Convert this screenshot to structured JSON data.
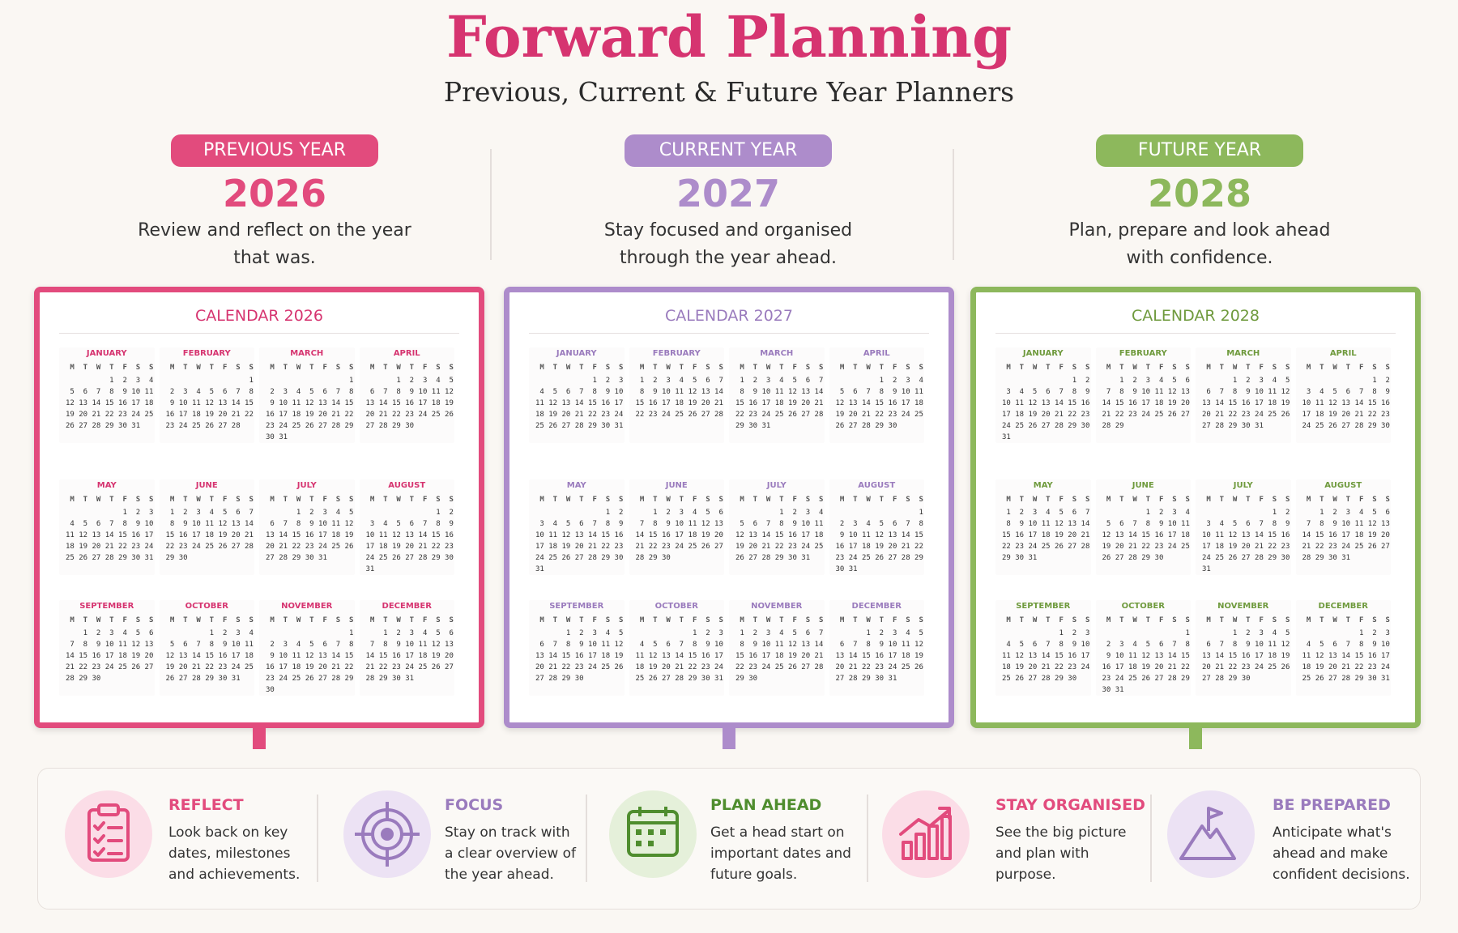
{
  "header": {
    "title": "Forward Planning",
    "subtitle": "Previous, Current & Future Year Planners"
  },
  "weekday_header": " M  T  W  T  F  S  S",
  "month_names": [
    "JANUARY",
    "FEBRUARY",
    "MARCH",
    "APRIL",
    "MAY",
    "JUNE",
    "JULY",
    "AUGUST",
    "SEPTEMBER",
    "OCTOBER",
    "NOVEMBER",
    "DECEMBER"
  ],
  "columns": [
    {
      "badge": "PREVIOUS YEAR",
      "year": "2026",
      "description": [
        "Review and reflect on the year",
        "that was."
      ],
      "calendar_title": "CALENDAR 2026",
      "months": [
        [
          "          1  2  3  4",
          " 5  6  7  8  9 10 11",
          "12 13 14 15 16 17 18",
          "19 20 21 22 23 24 25",
          "26 27 28 29 30 31"
        ],
        [
          "                   1",
          " 2  3  4  5  6  7  8",
          " 9 10 11 12 13 14 15",
          "16 17 18 19 20 21 22",
          "23 24 25 26 27 28"
        ],
        [
          "                   1",
          " 2  3  4  5  6  7  8",
          " 9 10 11 12 13 14 15",
          "16 17 18 19 20 21 22",
          "23 24 25 26 27 28 29",
          "30 31"
        ],
        [
          "       1  2  3  4  5",
          " 6  7  8  9 10 11 12",
          "13 14 15 16 17 18 19",
          "20 21 22 23 24 25 26",
          "27 28 29 30"
        ],
        [
          "             1  2  3",
          " 4  5  6  7  8  9 10",
          "11 12 13 14 15 16 17",
          "18 19 20 21 22 23 24",
          "25 26 27 28 29 30 31"
        ],
        [
          " 1  2  3  4  5  6  7",
          " 8  9 10 11 12 13 14",
          "15 16 17 18 19 20 21",
          "22 23 24 25 26 27 28",
          "29 30"
        ],
        [
          "       1  2  3  4  5",
          " 6  7  8  9 10 11 12",
          "13 14 15 16 17 18 19",
          "20 21 22 23 24 25 26",
          "27 28 29 30 31"
        ],
        [
          "                1  2",
          " 3  4  5  6  7  8  9",
          "10 11 12 13 14 15 16",
          "17 18 19 20 21 22 23",
          "24 25 26 27 28 29 30",
          "31"
        ],
        [
          "    1  2  3  4  5  6",
          " 7  8  9 10 11 12 13",
          "14 15 16 17 18 19 20",
          "21 22 23 24 25 26 27",
          "28 29 30"
        ],
        [
          "          1  2  3  4",
          " 5  6  7  8  9 10 11",
          "12 13 14 15 16 17 18",
          "19 20 21 22 23 24 25",
          "26 27 28 29 30 31"
        ],
        [
          "                   1",
          " 2  3  4  5  6  7  8",
          " 9 10 11 12 13 14 15",
          "16 17 18 19 20 21 22",
          "23 24 25 26 27 28 29",
          "30"
        ],
        [
          "    1  2  3  4  5  6",
          " 7  8  9 10 11 12 13",
          "14 15 16 17 18 19 20",
          "21 22 23 24 25 26 27",
          "28 29 30 31"
        ]
      ]
    },
    {
      "badge": "CURRENT YEAR",
      "year": "2027",
      "description": [
        "Stay focused and organised",
        "through the year ahead."
      ],
      "calendar_title": "CALENDAR 2027",
      "months": [
        [
          "             1  2  3",
          " 4  5  6  7  8  9 10",
          "11 12 13 14 15 16 17",
          "18 19 20 21 22 23 24",
          "25 26 27 28 29 30 31"
        ],
        [
          " 1  2  3  4  5  6  7",
          " 8  9 10 11 12 13 14",
          "15 16 17 18 19 20 21",
          "22 23 24 25 26 27 28"
        ],
        [
          " 1  2  3  4  5  6  7",
          " 8  9 10 11 12 13 14",
          "15 16 17 18 19 20 21",
          "22 23 24 25 26 27 28",
          "29 30 31"
        ],
        [
          "          1  2  3  4",
          " 5  6  7  8  9 10 11",
          "12 13 14 15 16 17 18",
          "19 20 21 22 23 24 25",
          "26 27 28 29 30"
        ],
        [
          "                1  2",
          " 3  4  5  6  7  8  9",
          "10 11 12 13 14 15 16",
          "17 18 19 20 21 22 23",
          "24 25 26 27 28 29 30",
          "31"
        ],
        [
          "    1  2  3  4  5  6",
          " 7  8  9 10 11 12 13",
          "14 15 16 17 18 19 20",
          "21 22 23 24 25 26 27",
          "28 29 30"
        ],
        [
          "          1  2  3  4",
          " 5  6  7  8  9 10 11",
          "12 13 14 15 16 17 18",
          "19 20 21 22 23 24 25",
          "26 27 28 29 30 31"
        ],
        [
          "                   1",
          " 2  3  4  5  6  7  8",
          " 9 10 11 12 13 14 15",
          "16 17 18 19 20 21 22",
          "23 24 25 26 27 28 29",
          "30 31"
        ],
        [
          "       1  2  3  4  5",
          " 6  7  8  9 10 11 12",
          "13 14 15 16 17 18 19",
          "20 21 22 23 24 25 26",
          "27 28 29 30"
        ],
        [
          "             1  2  3",
          " 4  5  6  7  8  9 10",
          "11 12 13 14 15 16 17",
          "18 19 20 21 22 23 24",
          "25 26 27 28 29 30 31"
        ],
        [
          " 1  2  3  4  5  6  7",
          " 8  9 10 11 12 13 14",
          "15 16 17 18 19 20 21",
          "22 23 24 25 26 27 28",
          "29 30"
        ],
        [
          "       1  2  3  4  5",
          " 6  7  8  9 10 11 12",
          "13 14 15 16 17 18 19",
          "20 21 22 23 24 25 26",
          "27 28 29 30 31"
        ]
      ]
    },
    {
      "badge": "FUTURE YEAR",
      "year": "2028",
      "description": [
        "Plan, prepare and look ahead",
        "with confidence."
      ],
      "calendar_title": "CALENDAR 2028",
      "months": [
        [
          "                1  2",
          " 3  4  5  6  7  8  9",
          "10 11 12 13 14 15 16",
          "17 18 19 20 21 22 23",
          "24 25 26 27 28 29 30",
          "31"
        ],
        [
          "    1  2  3  4  5  6",
          " 7  8  9 10 11 12 13",
          "14 15 16 17 18 19 20",
          "21 22 23 24 25 26 27",
          "28 29"
        ],
        [
          "       1  2  3  4  5",
          " 6  7  8  9 10 11 12",
          "13 14 15 16 17 18 19",
          "20 21 22 23 24 25 26",
          "27 28 29 30 31"
        ],
        [
          "                1  2",
          " 3  4  5  6  7  8  9",
          "10 11 12 13 14 15 16",
          "17 18 19 20 21 22 23",
          "24 25 26 27 28 29 30"
        ],
        [
          " 1  2  3  4  5  6  7",
          " 8  9 10 11 12 13 14",
          "15 16 17 18 19 20 21",
          "22 23 24 25 26 27 28",
          "29 30 31"
        ],
        [
          "          1  2  3  4",
          " 5  6  7  8  9 10 11",
          "12 13 14 15 16 17 18",
          "19 20 21 22 23 24 25",
          "26 27 28 29 30"
        ],
        [
          "                1  2",
          " 3  4  5  6  7  8  9",
          "10 11 12 13 14 15 16",
          "17 18 19 20 21 22 23",
          "24 25 26 27 28 29 30",
          "31"
        ],
        [
          "    1  2  3  4  5  6",
          " 7  8  9 10 11 12 13",
          "14 15 16 17 18 19 20",
          "21 22 23 24 25 26 27",
          "28 29 30 31"
        ],
        [
          "             1  2  3",
          " 4  5  6  7  8  9 10",
          "11 12 13 14 15 16 17",
          "18 19 20 21 22 23 24",
          "25 26 27 28 29 30"
        ],
        [
          "                   1",
          " 2  3  4  5  6  7  8",
          " 9 10 11 12 13 14 15",
          "16 17 18 19 20 21 22",
          "23 24 25 26 27 28 29",
          "30 31"
        ],
        [
          "       1  2  3  4  5",
          " 6  7  8  9 10 11 12",
          "13 14 15 16 17 18 19",
          "20 21 22 23 24 25 26",
          "27 28 29 30"
        ],
        [
          "             1  2  3",
          " 4  5  6  7  8  9 10",
          "11 12 13 14 15 16 17",
          "18 19 20 21 22 23 24",
          "25 26 27 28 29 30 31"
        ]
      ]
    }
  ],
  "features": [
    {
      "title": "REFLECT",
      "lines": [
        "Look back on key",
        "dates, milestones",
        "and achievements."
      ]
    },
    {
      "title": "FOCUS",
      "lines": [
        "Stay on track with",
        "a clear overview of",
        "the year ahead."
      ]
    },
    {
      "title": "PLAN AHEAD",
      "lines": [
        "Get a head start on",
        "important dates and",
        "future goals."
      ]
    },
    {
      "title": "STAY ORGANISED",
      "lines": [
        "See the big picture",
        "and plan with",
        "purpose."
      ]
    },
    {
      "title": "BE PREPARED",
      "lines": [
        "Anticipate what's",
        "ahead and make",
        "confident decisions."
      ]
    }
  ]
}
